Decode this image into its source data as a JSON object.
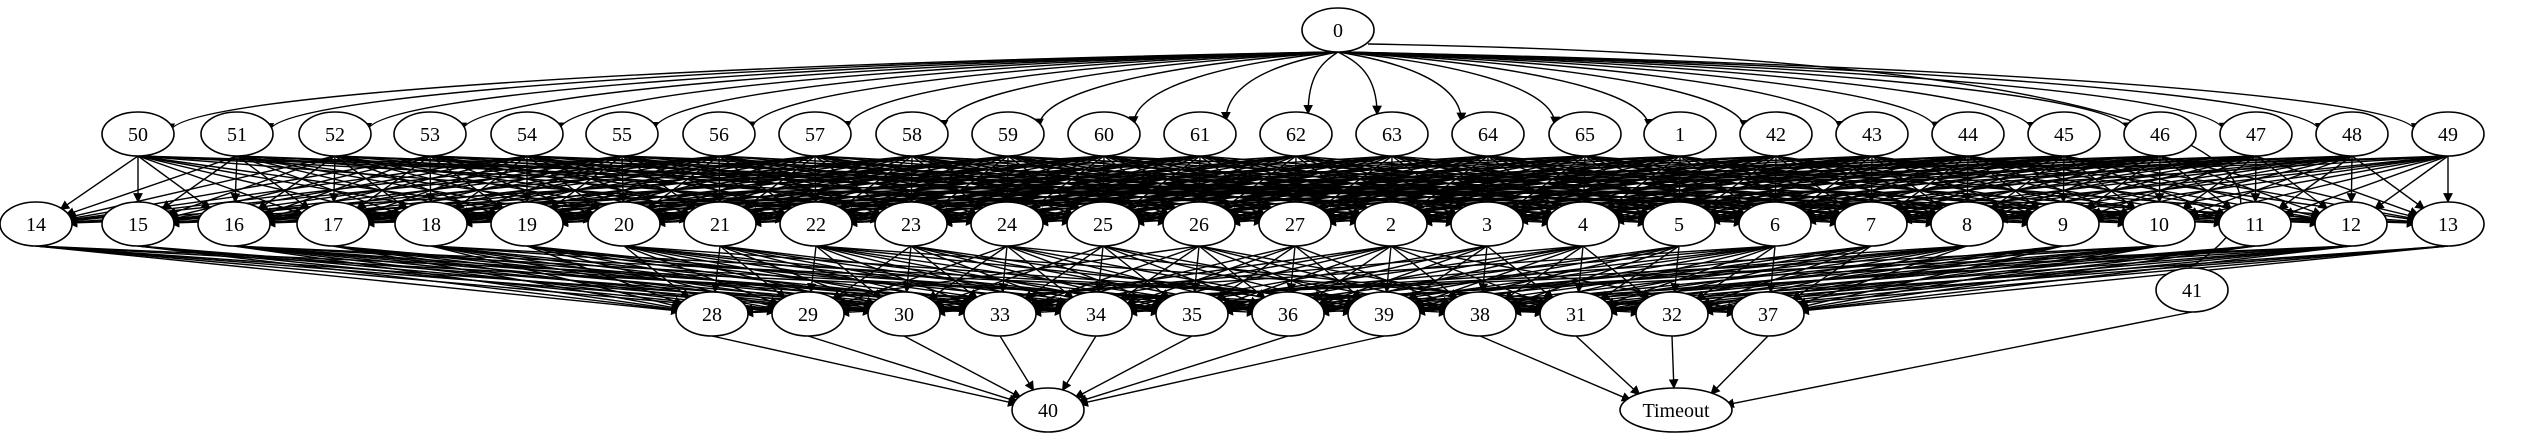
{
  "graph": {
    "nodes": [
      {
        "id": "0",
        "label": "0"
      },
      {
        "id": "50",
        "label": "50"
      },
      {
        "id": "51",
        "label": "51"
      },
      {
        "id": "52",
        "label": "52"
      },
      {
        "id": "53",
        "label": "53"
      },
      {
        "id": "54",
        "label": "54"
      },
      {
        "id": "55",
        "label": "55"
      },
      {
        "id": "56",
        "label": "56"
      },
      {
        "id": "57",
        "label": "57"
      },
      {
        "id": "58",
        "label": "58"
      },
      {
        "id": "59",
        "label": "59"
      },
      {
        "id": "60",
        "label": "60"
      },
      {
        "id": "61",
        "label": "61"
      },
      {
        "id": "62",
        "label": "62"
      },
      {
        "id": "63",
        "label": "63"
      },
      {
        "id": "64",
        "label": "64"
      },
      {
        "id": "65",
        "label": "65"
      },
      {
        "id": "1",
        "label": "1"
      },
      {
        "id": "42",
        "label": "42"
      },
      {
        "id": "43",
        "label": "43"
      },
      {
        "id": "44",
        "label": "44"
      },
      {
        "id": "45",
        "label": "45"
      },
      {
        "id": "46",
        "label": "46"
      },
      {
        "id": "47",
        "label": "47"
      },
      {
        "id": "48",
        "label": "48"
      },
      {
        "id": "49",
        "label": "49"
      },
      {
        "id": "14",
        "label": "14"
      },
      {
        "id": "15",
        "label": "15"
      },
      {
        "id": "16",
        "label": "16"
      },
      {
        "id": "17",
        "label": "17"
      },
      {
        "id": "18",
        "label": "18"
      },
      {
        "id": "19",
        "label": "19"
      },
      {
        "id": "20",
        "label": "20"
      },
      {
        "id": "21",
        "label": "21"
      },
      {
        "id": "22",
        "label": "22"
      },
      {
        "id": "23",
        "label": "23"
      },
      {
        "id": "24",
        "label": "24"
      },
      {
        "id": "25",
        "label": "25"
      },
      {
        "id": "26",
        "label": "26"
      },
      {
        "id": "27",
        "label": "27"
      },
      {
        "id": "2",
        "label": "2"
      },
      {
        "id": "3",
        "label": "3"
      },
      {
        "id": "4",
        "label": "4"
      },
      {
        "id": "5",
        "label": "5"
      },
      {
        "id": "6",
        "label": "6"
      },
      {
        "id": "7",
        "label": "7"
      },
      {
        "id": "8",
        "label": "8"
      },
      {
        "id": "9",
        "label": "9"
      },
      {
        "id": "10",
        "label": "10"
      },
      {
        "id": "11",
        "label": "11"
      },
      {
        "id": "12",
        "label": "12"
      },
      {
        "id": "13",
        "label": "13"
      },
      {
        "id": "28",
        "label": "28"
      },
      {
        "id": "29",
        "label": "29"
      },
      {
        "id": "30",
        "label": "30"
      },
      {
        "id": "33",
        "label": "33"
      },
      {
        "id": "34",
        "label": "34"
      },
      {
        "id": "35",
        "label": "35"
      },
      {
        "id": "36",
        "label": "36"
      },
      {
        "id": "39",
        "label": "39"
      },
      {
        "id": "38",
        "label": "38"
      },
      {
        "id": "31",
        "label": "31"
      },
      {
        "id": "32",
        "label": "32"
      },
      {
        "id": "37",
        "label": "37"
      },
      {
        "id": "41",
        "label": "41"
      },
      {
        "id": "40",
        "label": "40",
        "color": "#0000ff"
      },
      {
        "id": "Timeout",
        "label": "Timeout",
        "color": "#ff0000"
      }
    ],
    "layers": [
      [
        "0"
      ],
      [
        "50",
        "51",
        "52",
        "53",
        "54",
        "55",
        "56",
        "57",
        "58",
        "59",
        "60",
        "61",
        "62",
        "63",
        "64",
        "65",
        "1",
        "42",
        "43",
        "44",
        "45",
        "46",
        "47",
        "48",
        "49"
      ],
      [
        "14",
        "15",
        "16",
        "17",
        "18",
        "19",
        "20",
        "21",
        "22",
        "23",
        "24",
        "25",
        "26",
        "27",
        "2",
        "3",
        "4",
        "5",
        "6",
        "7",
        "8",
        "9",
        "10",
        "11",
        "12",
        "13"
      ],
      [
        "28",
        "29",
        "30",
        "33",
        "34",
        "35",
        "36",
        "39",
        "38",
        "31",
        "32",
        "37",
        "41"
      ],
      [
        "40",
        "Timeout"
      ]
    ],
    "edges_explicit": [
      [
        "28",
        "40"
      ],
      [
        "29",
        "40"
      ],
      [
        "30",
        "40"
      ],
      [
        "33",
        "40"
      ],
      [
        "34",
        "40"
      ],
      [
        "35",
        "40"
      ],
      [
        "36",
        "40"
      ],
      [
        "39",
        "40"
      ],
      [
        "38",
        "Timeout"
      ],
      [
        "31",
        "Timeout"
      ],
      [
        "32",
        "Timeout"
      ],
      [
        "37",
        "Timeout"
      ],
      [
        "41",
        "Timeout"
      ],
      [
        "0",
        "41"
      ]
    ],
    "edge_rules": {
      "root_to_layer1": true,
      "layer1_to_layer2": "dense",
      "layer2_to_layer3": "dense"
    },
    "colors": {
      "edge": "#000000",
      "node_stroke": "#000000",
      "success_node": "#0000ff",
      "timeout_node": "#ff0000"
    }
  }
}
